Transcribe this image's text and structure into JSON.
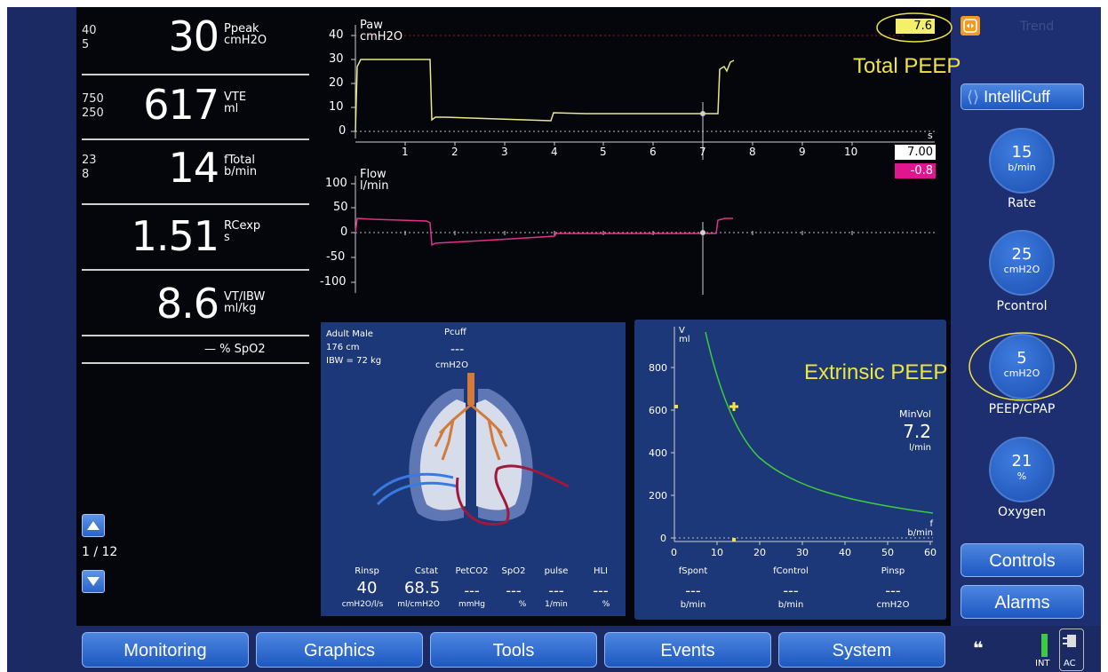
{
  "vitals": [
    {
      "name": "Ppeak",
      "unit": "cmH2O",
      "value": "30",
      "hi": "40",
      "lo": "5"
    },
    {
      "name": "VTE",
      "unit": "ml",
      "value": "617",
      "hi": "750",
      "lo": "250"
    },
    {
      "name": "fTotal",
      "unit": "b/min",
      "value": "14",
      "hi": "23",
      "lo": "8"
    },
    {
      "name": "RCexp",
      "unit": "s",
      "value": "1.51",
      "hi": "",
      "lo": ""
    },
    {
      "name": "VT/IBW",
      "unit": "ml/kg",
      "value": "8.6",
      "hi": "",
      "lo": ""
    }
  ],
  "spo2_label": "— % SpO2",
  "page_indicator": "1 / 12",
  "paw_chart": {
    "label": "Paw",
    "unit": "cmH2O",
    "y_ticks": [
      "40",
      "30",
      "20",
      "10",
      "0"
    ],
    "x_ticks": [
      "1",
      "2",
      "3",
      "4",
      "5",
      "6",
      "7",
      "8",
      "9",
      "10"
    ],
    "x_unit": "s",
    "cursor_time": "7.00",
    "cursor_flow": "-0.8",
    "total_peep_readout": "7.6"
  },
  "flow_chart": {
    "label": "Flow",
    "unit": "l/min",
    "y_ticks": [
      "100",
      "50",
      "0",
      "-50",
      "-100"
    ]
  },
  "annotations": {
    "total_peep": "Total PEEP",
    "extrinsic_peep": "Extrinsic PEEP"
  },
  "patient": {
    "line1": "Adult Male",
    "line2": "176 cm",
    "line3": "IBW = 72 kg",
    "pcuff_label": "Pcuff",
    "pcuff_value": "---",
    "pcuff_unit": "cmH2O"
  },
  "lung_stats": [
    {
      "label": "Rinsp",
      "value": "40",
      "unit": "cmH2O/l/s"
    },
    {
      "label": "Cstat",
      "value": "68.5",
      "unit": "ml/cmH2O"
    },
    {
      "label": "PetCO2",
      "value": "---",
      "unit": "mmHg"
    },
    {
      "label": "SpO2",
      "value": "---",
      "unit": "%"
    },
    {
      "label": "pulse",
      "value": "---",
      "unit": "1/min"
    },
    {
      "label": "HLI",
      "value": "---",
      "unit": "%"
    }
  ],
  "vf_chart": {
    "y_label": "V",
    "y_unit": "ml",
    "x_label": "f",
    "x_unit": "b/min",
    "y_ticks": [
      "800",
      "600",
      "400",
      "200",
      "0"
    ],
    "x_ticks": [
      "0",
      "10",
      "20",
      "30",
      "40",
      "50",
      "60"
    ],
    "minvol_label": "MinVol",
    "minvol_value": "7.2",
    "minvol_unit": "l/min"
  },
  "vf_stats": [
    {
      "label": "fSpont",
      "value": "---",
      "unit": "b/min"
    },
    {
      "label": "fControl",
      "value": "---",
      "unit": "b/min"
    },
    {
      "label": "Pinsp",
      "value": "---",
      "unit": "cmH2O"
    }
  ],
  "right": {
    "trend_label": "Trend",
    "intellicuff": "IntelliCuff",
    "controls": [
      {
        "value": "15",
        "unit": "b/min",
        "label": "Rate"
      },
      {
        "value": "25",
        "unit": "cmH2O",
        "label": "Pcontrol"
      },
      {
        "value": "5",
        "unit": "cmH2O",
        "label": "PEEP/CPAP"
      },
      {
        "value": "21",
        "unit": "%",
        "label": "Oxygen"
      }
    ],
    "controls_btn": "Controls",
    "alarms_btn": "Alarms"
  },
  "tabs": [
    "Monitoring",
    "Graphics",
    "Tools",
    "Events",
    "System"
  ],
  "power": {
    "int": "INT",
    "ac": "AC"
  }
}
